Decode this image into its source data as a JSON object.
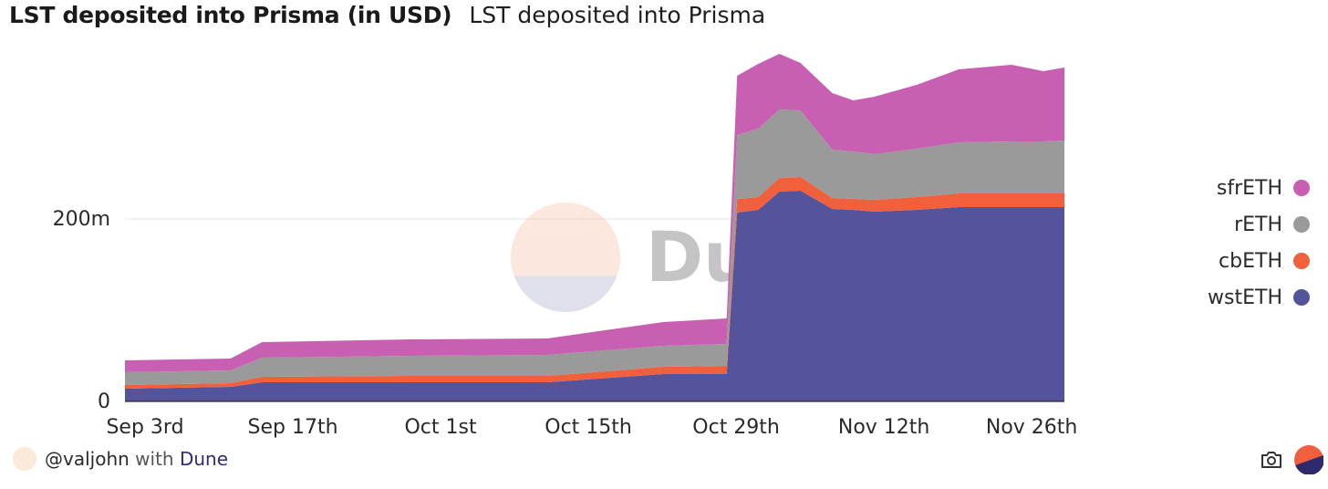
{
  "header": {
    "title": "LST deposited into Prisma (in USD)",
    "subtitle": "LST deposited into Prisma"
  },
  "watermark": {
    "text": "Dune"
  },
  "footer": {
    "author": "@valjohn",
    "with_text": "with",
    "brand": "Dune"
  },
  "icons": {
    "camera": "camera-icon",
    "brand": "dune-logo-icon",
    "avatar": "avatar-icon"
  },
  "chart_data": {
    "type": "area",
    "stacked": true,
    "title": "LST deposited into Prisma (in USD)",
    "y_ticks": [
      {
        "value": 0,
        "label": "0"
      },
      {
        "value": 200000000,
        "label": "200m"
      }
    ],
    "x_ticks": [
      {
        "date": "2023-09-03",
        "label": "Sep 3rd"
      },
      {
        "date": "2023-09-17",
        "label": "Sep 17th"
      },
      {
        "date": "2023-10-01",
        "label": "Oct 1st"
      },
      {
        "date": "2023-10-15",
        "label": "Oct 15th"
      },
      {
        "date": "2023-10-29",
        "label": "Oct 29th"
      },
      {
        "date": "2023-11-12",
        "label": "Nov 12th"
      },
      {
        "date": "2023-11-26",
        "label": "Nov 26th"
      }
    ],
    "x_range": [
      "2023-09-03",
      "2023-12-01"
    ],
    "ylim": [
      0,
      400000000
    ],
    "legend_position": "right",
    "x": [
      "2023-09-03",
      "2023-09-13",
      "2023-09-16",
      "2023-09-30",
      "2023-10-13",
      "2023-10-24",
      "2023-10-30",
      "2023-10-31",
      "2023-11-02",
      "2023-11-04",
      "2023-11-06",
      "2023-11-09",
      "2023-11-11",
      "2023-11-13",
      "2023-11-17",
      "2023-11-21",
      "2023-11-26",
      "2023-11-29",
      "2023-12-01"
    ],
    "series": [
      {
        "name": "wstETH",
        "color": "#54549c",
        "values": [
          14,
          16,
          21,
          21,
          21,
          30,
          30,
          207,
          210,
          230,
          231,
          211,
          210,
          208,
          210,
          213,
          213,
          213,
          213
        ]
      },
      {
        "name": "cbETH",
        "color": "#f0603d",
        "values": [
          4,
          4,
          6,
          7,
          7,
          8,
          9,
          15,
          14,
          15,
          15,
          12,
          12,
          13,
          14,
          15,
          15,
          15,
          15
        ]
      },
      {
        "name": "rETH",
        "color": "#9a9a9a",
        "values": [
          14,
          14,
          21,
          22,
          23,
          23,
          24,
          70,
          75,
          75,
          73,
          53,
          52,
          50,
          53,
          56,
          57,
          57,
          58
        ]
      },
      {
        "name": "sfrETH",
        "color": "#c95fb3",
        "values": [
          13,
          13,
          17,
          18,
          18,
          26,
          28,
          65,
          71,
          61,
          52,
          62,
          56,
          63,
          70,
          80,
          84,
          77,
          80
        ]
      }
    ]
  }
}
